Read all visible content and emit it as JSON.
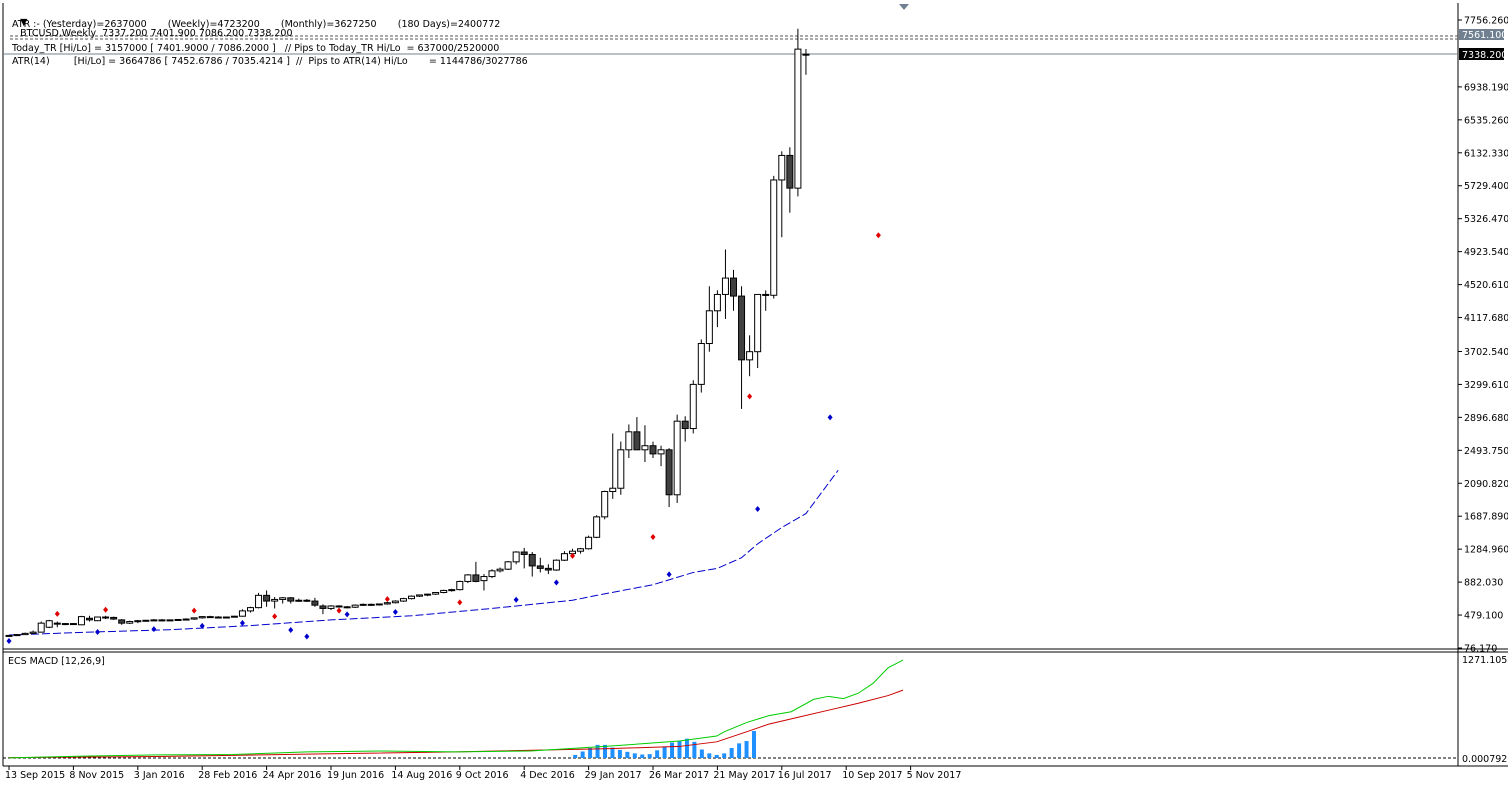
{
  "header": {
    "symbol_line": "BTCUSD,Weekly  7337.200 7401.900 7086.200 7338.200",
    "atr_line": "ATR :- (Yesterday)=2637000       (Weekly)=4723200       (Monthly)=3627250       (180 Days)=2400772",
    "today_tr_line": "Today_TR [Hi/Lo] = 3157000 [ 7401.9000 / 7086.2000 ]   // Pips to Today_TR Hi/Lo  = 637000/2520000",
    "atr14_line": "ATR(14)        [Hi/Lo] = 3664786 [ 7452.6786 / 7035.4214 ]  //  Pips to ATR(14) Hi/Lo       = 1144786/3027786"
  },
  "colors": {
    "bull_body": "#ffffff",
    "bear_body": "#404040",
    "candle_outline": "#000000",
    "ma_line": "#0000cc",
    "fractal_up": "#e00000",
    "fractal_down": "#0000cc",
    "macd_line": "#00cc00",
    "signal_line": "#cc0000",
    "histogram": "#1e90ff"
  },
  "price_panel": {
    "y_ticks": [
      "7756.260",
      "6938.190",
      "6535.260",
      "6132.330",
      "5729.400",
      "5326.470",
      "4923.540",
      "4520.610",
      "4117.680",
      "3702.540",
      "3299.610",
      "2896.680",
      "2493.750",
      "2090.820",
      "1687.890",
      "1284.960",
      "882.030",
      "479.100",
      "76.170"
    ],
    "price_badges": [
      "7561.100",
      "7338.200"
    ]
  },
  "macd_panel": {
    "title": "ECS MACD [12,26,9]",
    "top_label": "1271.1051",
    "bottom_label": "0.000792"
  },
  "x_axis": {
    "labels": [
      "13 Sep 2015",
      "8 Nov 2015",
      "3 Jan 2016",
      "28 Feb 2016",
      "24 Apr 2016",
      "19 Jun 2016",
      "14 Aug 2016",
      "9 Oct 2016",
      "4 Dec 2016",
      "29 Jan 2017",
      "26 Mar 2017",
      "21 May 2017",
      "16 Jul 2017",
      "10 Sep 2017",
      "5 Nov 2017"
    ]
  },
  "chart_data": {
    "type": "candlestick",
    "title": "BTCUSD,Weekly",
    "timeframe": "Weekly",
    "ylim": [
      76.17,
      7756.26
    ],
    "grid": false,
    "first_bar_date": "13 Sep 2015",
    "candles": [
      [
        230,
        235,
        225,
        230
      ],
      [
        230,
        245,
        228,
        240
      ],
      [
        240,
        265,
        235,
        255
      ],
      [
        255,
        290,
        250,
        270
      ],
      [
        270,
        400,
        265,
        380
      ],
      [
        330,
        420,
        320,
        410
      ],
      [
        380,
        400,
        330,
        370
      ],
      [
        370,
        380,
        355,
        375
      ],
      [
        375,
        380,
        360,
        370
      ],
      [
        360,
        470,
        355,
        460
      ],
      [
        440,
        470,
        400,
        420
      ],
      [
        410,
        460,
        405,
        455
      ],
      [
        455,
        470,
        430,
        450
      ],
      [
        450,
        460,
        420,
        430
      ],
      [
        420,
        430,
        360,
        380
      ],
      [
        380,
        410,
        370,
        400
      ],
      [
        400,
        420,
        380,
        410
      ],
      [
        410,
        420,
        400,
        415
      ],
      [
        415,
        430,
        405,
        420
      ],
      [
        420,
        430,
        400,
        410
      ],
      [
        410,
        425,
        405,
        420
      ],
      [
        420,
        430,
        410,
        425
      ],
      [
        425,
        440,
        415,
        430
      ],
      [
        430,
        450,
        420,
        445
      ],
      [
        445,
        465,
        435,
        460
      ],
      [
        460,
        470,
        450,
        455
      ],
      [
        455,
        465,
        440,
        450
      ],
      [
        450,
        460,
        445,
        455
      ],
      [
        455,
        470,
        450,
        465
      ],
      [
        465,
        550,
        460,
        530
      ],
      [
        530,
        580,
        510,
        570
      ],
      [
        570,
        750,
        560,
        720
      ],
      [
        720,
        780,
        580,
        650
      ],
      [
        650,
        700,
        560,
        670
      ],
      [
        670,
        700,
        620,
        690
      ],
      [
        690,
        700,
        620,
        650
      ],
      [
        650,
        680,
        640,
        660
      ],
      [
        660,
        675,
        640,
        650
      ],
      [
        650,
        690,
        580,
        600
      ],
      [
        590,
        610,
        490,
        560
      ],
      [
        560,
        600,
        540,
        590
      ],
      [
        590,
        600,
        570,
        580
      ],
      [
        580,
        590,
        560,
        575
      ],
      [
        575,
        610,
        565,
        600
      ],
      [
        600,
        620,
        590,
        610
      ],
      [
        610,
        620,
        590,
        605
      ],
      [
        605,
        620,
        595,
        615
      ],
      [
        615,
        640,
        605,
        630
      ],
      [
        630,
        660,
        620,
        650
      ],
      [
        650,
        690,
        640,
        680
      ],
      [
        680,
        720,
        670,
        710
      ],
      [
        710,
        730,
        700,
        725
      ],
      [
        725,
        740,
        710,
        735
      ],
      [
        735,
        760,
        725,
        755
      ],
      [
        755,
        790,
        745,
        780
      ],
      [
        780,
        800,
        765,
        790
      ],
      [
        790,
        900,
        780,
        890
      ],
      [
        890,
        980,
        870,
        970
      ],
      [
        970,
        1130,
        880,
        890
      ],
      [
        900,
        980,
        780,
        950
      ],
      [
        950,
        1040,
        930,
        1020
      ],
      [
        1020,
        1060,
        1000,
        1040
      ],
      [
        1040,
        1140,
        1030,
        1130
      ],
      [
        1130,
        1260,
        1100,
        1250
      ],
      [
        1250,
        1300,
        1050,
        1220
      ],
      [
        1220,
        1250,
        950,
        1080
      ],
      [
        1080,
        1180,
        1000,
        1050
      ],
      [
        1050,
        1100,
        980,
        1030
      ],
      [
        1030,
        1160,
        1020,
        1150
      ],
      [
        1150,
        1260,
        1140,
        1230
      ],
      [
        1230,
        1290,
        1180,
        1260
      ],
      [
        1260,
        1300,
        1230,
        1290
      ],
      [
        1290,
        1450,
        1280,
        1430
      ],
      [
        1430,
        1700,
        1420,
        1680
      ],
      [
        1680,
        2000,
        1650,
        1990
      ],
      [
        1990,
        2700,
        1900,
        2030
      ],
      [
        2030,
        2600,
        1950,
        2500
      ],
      [
        2500,
        2810,
        2400,
        2720
      ],
      [
        2720,
        2900,
        2500,
        2500
      ],
      [
        2500,
        2800,
        2350,
        2550
      ],
      [
        2550,
        2600,
        2400,
        2450
      ],
      [
        2450,
        2550,
        2300,
        2500
      ],
      [
        2500,
        2520,
        1800,
        1950
      ],
      [
        1950,
        2930,
        1850,
        2850
      ],
      [
        2850,
        2910,
        2600,
        2760
      ],
      [
        2760,
        3350,
        2700,
        3300
      ],
      [
        3300,
        3850,
        3200,
        3800
      ],
      [
        3800,
        4500,
        3700,
        4200
      ],
      [
        4200,
        4450,
        4000,
        4400
      ],
      [
        4400,
        4950,
        4100,
        4600
      ],
      [
        4600,
        4700,
        4200,
        4380
      ],
      [
        4380,
        4500,
        3000,
        3600
      ],
      [
        3600,
        3900,
        3400,
        3700
      ],
      [
        3700,
        4400,
        3500,
        4400
      ],
      [
        4400,
        4450,
        4200,
        4390
      ],
      [
        4390,
        5850,
        4350,
        5800
      ],
      [
        5800,
        6150,
        5100,
        6100
      ],
      [
        6100,
        6200,
        5400,
        5700
      ],
      [
        5700,
        7650,
        5600,
        7400
      ],
      [
        7337.2,
        7401.9,
        7086.2,
        7338.2
      ]
    ],
    "moving_average": [
      [
        0,
        235
      ],
      [
        10,
        270
      ],
      [
        20,
        300
      ],
      [
        30,
        350
      ],
      [
        40,
        420
      ],
      [
        50,
        470
      ],
      [
        60,
        560
      ],
      [
        70,
        660
      ],
      [
        73,
        720
      ],
      [
        80,
        850
      ],
      [
        85,
        1000
      ],
      [
        88,
        1050
      ],
      [
        91,
        1180
      ],
      [
        93,
        1350
      ],
      [
        96,
        1550
      ],
      [
        99,
        1720
      ],
      [
        103,
        2250
      ]
    ],
    "fractals_up": [
      [
        6,
        420
      ],
      [
        12,
        470
      ],
      [
        23,
        460
      ],
      [
        33,
        390
      ],
      [
        41,
        460
      ],
      [
        47,
        600
      ],
      [
        56,
        560
      ],
      [
        70,
        1130
      ],
      [
        80,
        1360
      ],
      [
        92,
        3080
      ],
      [
        108,
        5050
      ]
    ],
    "fractals_down": [
      [
        0,
        235
      ],
      [
        11,
        345
      ],
      [
        18,
        380
      ],
      [
        24,
        420
      ],
      [
        29,
        455
      ],
      [
        35,
        370
      ],
      [
        37,
        290
      ],
      [
        42,
        560
      ],
      [
        48,
        590
      ],
      [
        63,
        740
      ],
      [
        68,
        950
      ],
      [
        82,
        1050
      ],
      [
        93,
        1850
      ],
      [
        102,
        2970
      ]
    ],
    "macd": {
      "title": "ECS MACD [12,26,9]",
      "ylim": [
        0,
        1271.1051
      ],
      "macd_line": [
        [
          0,
          2
        ],
        [
          10,
          25
        ],
        [
          20,
          40
        ],
        [
          30,
          45
        ],
        [
          40,
          80
        ],
        [
          50,
          90
        ],
        [
          60,
          80
        ],
        [
          70,
          90
        ],
        [
          80,
          150
        ],
        [
          90,
          220
        ],
        [
          95,
          285
        ],
        [
          96,
          340
        ],
        [
          99,
          460
        ],
        [
          102,
          550
        ],
        [
          105,
          600
        ],
        [
          108,
          760
        ],
        [
          110,
          800
        ],
        [
          112,
          770
        ],
        [
          114,
          840
        ],
        [
          116,
          970
        ],
        [
          118,
          1170
        ],
        [
          120,
          1270
        ]
      ],
      "signal_line": [
        [
          0,
          5
        ],
        [
          20,
          20
        ],
        [
          40,
          50
        ],
        [
          60,
          80
        ],
        [
          80,
          120
        ],
        [
          90,
          150
        ],
        [
          95,
          210
        ],
        [
          99,
          340
        ],
        [
          102,
          440
        ],
        [
          106,
          530
        ],
        [
          110,
          620
        ],
        [
          114,
          710
        ],
        [
          118,
          810
        ],
        [
          120,
          880
        ]
      ],
      "histogram": [
        [
          76,
          40
        ],
        [
          77,
          85
        ],
        [
          78,
          130
        ],
        [
          79,
          170
        ],
        [
          80,
          170
        ],
        [
          81,
          135
        ],
        [
          82,
          105
        ],
        [
          83,
          80
        ],
        [
          84,
          60
        ],
        [
          85,
          45
        ],
        [
          86,
          50
        ],
        [
          87,
          100
        ],
        [
          88,
          150
        ],
        [
          89,
          200
        ],
        [
          90,
          225
        ],
        [
          91,
          250
        ],
        [
          92,
          210
        ],
        [
          93,
          110
        ],
        [
          94,
          60
        ],
        [
          95,
          40
        ],
        [
          96,
          60
        ],
        [
          97,
          130
        ],
        [
          98,
          190
        ],
        [
          99,
          220
        ],
        [
          100,
          350
        ]
      ]
    }
  }
}
